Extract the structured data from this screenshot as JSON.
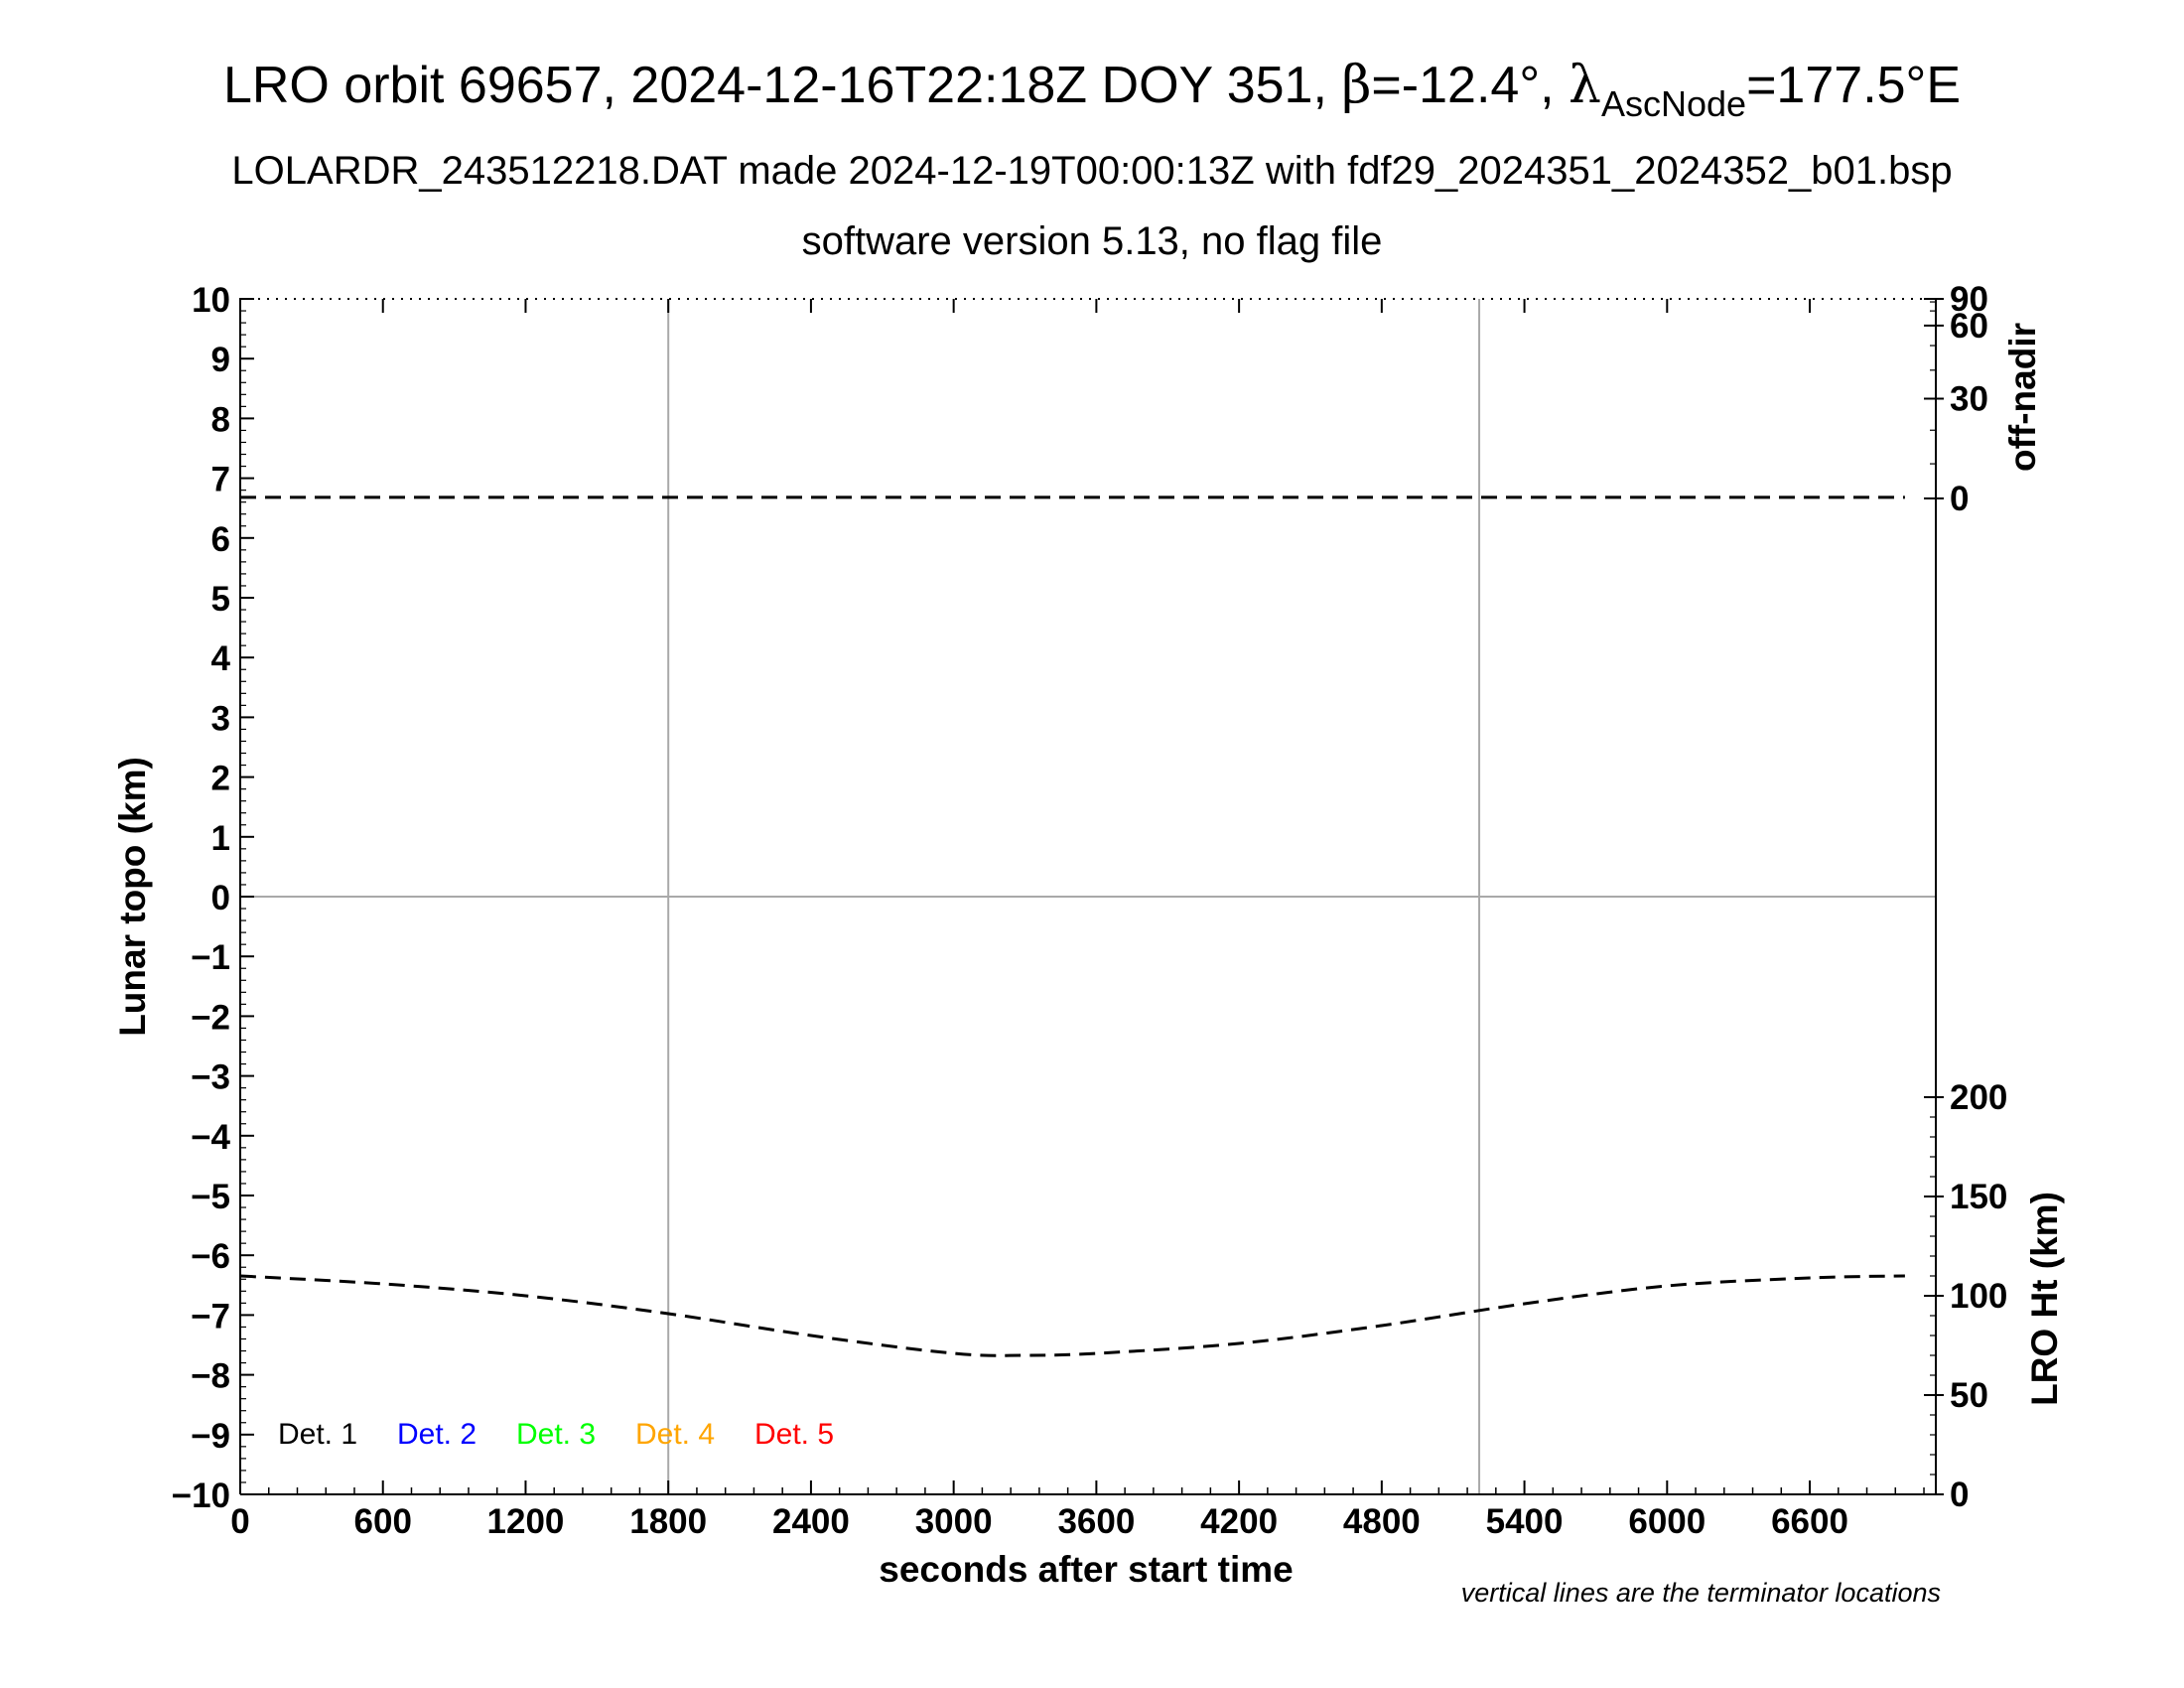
{
  "chart_data": {
    "type": "line",
    "title": {
      "prefix": "LRO orbit 69657, 2024-12-16T22:18Z DOY 351, ",
      "beta_symbol": "β",
      "beta_value": "=-12.4°, ",
      "lambda_symbol": "λ",
      "lambda_subscript": "AscNode",
      "lambda_value": "=177.5°E"
    },
    "subtitle1": "LOLARDR_243512218.DAT made 2024-12-19T00:00:13Z with fdf29_2024351_2024352_b01.bsp",
    "subtitle2": "software version 5.13, no flag file",
    "xlabel": "seconds after start time",
    "ylabel": "Lunar topo (km)",
    "y2_top_label": "off-nadir",
    "y2_bottom_label": "LRO Ht (km)",
    "footnote": "vertical lines are the terminator locations",
    "xlim": [
      0,
      7130
    ],
    "ylim": [
      -10,
      10
    ],
    "x_ticks": [
      "0",
      "600",
      "1200",
      "1800",
      "2400",
      "3000",
      "3600",
      "4200",
      "4800",
      "5400",
      "6000",
      "6600"
    ],
    "y_ticks": [
      "−10",
      "−9",
      "−8",
      "−7",
      "−6",
      "−5",
      "−4",
      "−3",
      "−2",
      "−1",
      "0",
      "1",
      "2",
      "3",
      "4",
      "5",
      "6",
      "7",
      "8",
      "9",
      "10"
    ],
    "offnadir_ticks": [
      "0",
      "30",
      "60",
      "90"
    ],
    "lro_ht_ticks": [
      "0",
      "50",
      "100",
      "150",
      "200"
    ],
    "terminator_x": [
      1800,
      5210
    ],
    "legend": [
      {
        "label": "Det. 1",
        "color": "#000000"
      },
      {
        "label": "Det. 2",
        "color": "#0000ff"
      },
      {
        "label": "Det. 3",
        "color": "#00ff00"
      },
      {
        "label": "Det. 4",
        "color": "#ffa500"
      },
      {
        "label": "Det. 5",
        "color": "#ff0000"
      }
    ],
    "series": [
      {
        "axis": "off-nadir (deg)",
        "style": "dashed",
        "color": "#000000",
        "x": [
          0,
          7000
        ],
        "y": [
          0.3,
          0.3
        ]
      },
      {
        "axis": "LRO Ht (km)",
        "style": "dashed",
        "color": "#000000",
        "x": [
          0,
          600,
          1200,
          1800,
          2400,
          3000,
          3300,
          3600,
          4200,
          4800,
          5400,
          6000,
          6600,
          7000
        ],
        "y": [
          110,
          106,
          100,
          91,
          80,
          71,
          70,
          71,
          76,
          85,
          96,
          105,
          109,
          110
        ]
      }
    ],
    "grid": "vertical lines at terminators and horizontal line at 0",
    "legend_placement": "bottom-left"
  }
}
